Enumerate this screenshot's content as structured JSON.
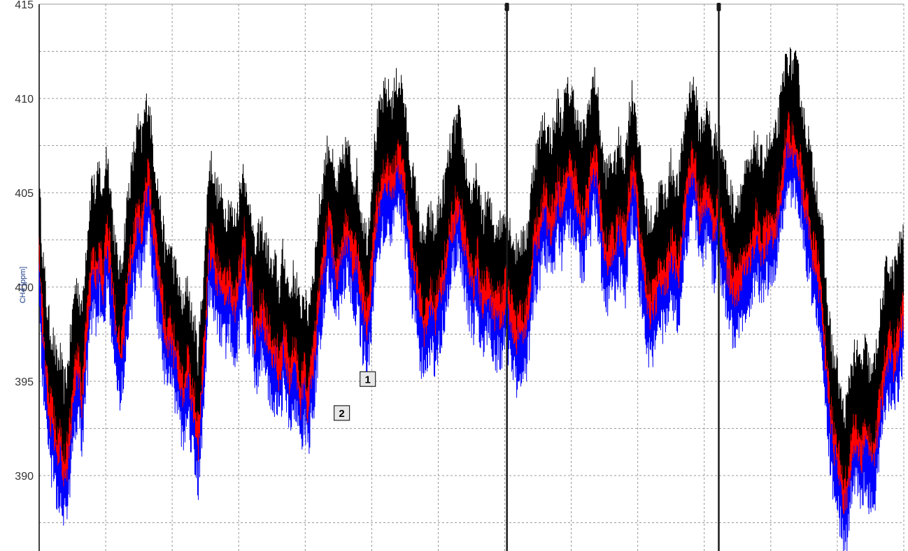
{
  "chart_data": {
    "type": "line",
    "title": "",
    "xlabel": "",
    "ylabel": "CH4 [ppm]",
    "ylim": [
      386,
      415
    ],
    "y_ticks": [
      415,
      410,
      405,
      400,
      395,
      390
    ],
    "grid": true,
    "legend": "none",
    "colors": {
      "max": "#000000",
      "mean": "#ff0000",
      "min": "#0000ff",
      "grid": "#999999",
      "cursor": "#1a1a1a",
      "axis": "#000000"
    },
    "series": [
      {
        "values": [
          403.2,
          399.8,
          397.2,
          395.8,
          395.1,
          393.8,
          394.2,
          392.6,
          393.5,
          395.4,
          397.8,
          398.1,
          396.4,
          399.2,
          401.5,
          403.7,
          402.8,
          404.2,
          402.6,
          405.1,
          403.8,
          401.2,
          399.5,
          398.7,
          400.3,
          402.6,
          403.8,
          405.2,
          406.4,
          405.6,
          407.3,
          407.9,
          405.8,
          404.1,
          402.7,
          401.1,
          399.5,
          400.2,
          399.1,
          398.6,
          397.5,
          396.6,
          398.4,
          396.5,
          395.9,
          394.2,
          397.1,
          399.8,
          404.2,
          404.5,
          403.1,
          402.8,
          402.4,
          401.7,
          402.5,
          401.3,
          401.8,
          403.1,
          404.6,
          401.9,
          402.6,
          399.7,
          400.5,
          401.1,
          400.3,
          399.7,
          398.6,
          399.2,
          397.7,
          399.6,
          398.8,
          397.4,
          398.5,
          398.1,
          396.5,
          397.8,
          396.2,
          397.9,
          399.1,
          401.4,
          402.9,
          404.5,
          405.6,
          404.7,
          402.9,
          403.8,
          404.6,
          405.4,
          404.8,
          403.6,
          403.9,
          402.2,
          401.3,
          400.4,
          402.8,
          405.3,
          406.8,
          407.6,
          408.2,
          408.1,
          407.7,
          408.6,
          408.9,
          408.4,
          406.6,
          404.8,
          403.7,
          402.6,
          401.1,
          400.2,
          401.3,
          401.7,
          400.7,
          401.9,
          402.4,
          403.5,
          404.8,
          405.7,
          406.5,
          406.8,
          405.4,
          404.2,
          403.1,
          402.6,
          403.9,
          402.1,
          401.7,
          402.6,
          401.8,
          400.9,
          401.4,
          401.1,
          402.2,
          401.3,
          400.7,
          399.8,
          400.4,
          400.2,
          400.6,
          402.1,
          404.3,
          405.1,
          405.8,
          406.9,
          406.1,
          405.7,
          406.4,
          407.7,
          406.6,
          407.9,
          408.3,
          408.1,
          407.4,
          406.2,
          405.8,
          406.7,
          407.8,
          408.9,
          408.6,
          406.2,
          404.3,
          403.9,
          404.8,
          404.2,
          405.6,
          405.1,
          404.7,
          406.8,
          408.2,
          407.5,
          405.1,
          403.7,
          401.9,
          401.3,
          401.6,
          402.2,
          403.2,
          402.6,
          403.1,
          404.4,
          403.8,
          403.1,
          404.9,
          406.8,
          407.9,
          408.8,
          408.1,
          406.2,
          406.6,
          407.2,
          406.7,
          405.3,
          406.2,
          405.5,
          404.8,
          403.4,
          402.8,
          402.2,
          402.6,
          403.1,
          403.8,
          404.1,
          404.5,
          405.8,
          404.7,
          404.5,
          405.2,
          405.4,
          405.4,
          406.2,
          407.5,
          409.1,
          410.3,
          409.7,
          409.8,
          409.2,
          407.9,
          406.4,
          405.8,
          404.2,
          403.6,
          402.3,
          400.9,
          397.8,
          395.9,
          394.2,
          393.6,
          392.3,
          391.1,
          391.8,
          393.6,
          394.5,
          394.1,
          393.7,
          394.8,
          393.8,
          393.2,
          394.1,
          395.9,
          397.2,
          398.8,
          399.1,
          398.5,
          399.4,
          400.2,
          401.4
        ],
        "note": "max envelope, evenly spaced over the x span"
      },
      {
        "values": [
          401.8,
          398.6,
          396.1,
          394.2,
          393.6,
          392.4,
          392.7,
          391.2,
          392.1,
          393.9,
          396.4,
          396.7,
          395.1,
          397.9,
          400.2,
          402.4,
          401.6,
          402.8,
          401.3,
          403.7,
          402.5,
          400.1,
          398.2,
          397.4,
          399.1,
          401.3,
          402.5,
          403.9,
          405.1,
          404.3,
          405.9,
          406.6,
          404.5,
          402.8,
          401.4,
          399.8,
          398.2,
          398.9,
          397.8,
          397.3,
          396.2,
          395.3,
          397.1,
          395.2,
          394.5,
          392.9,
          395.8,
          398.5,
          402.9,
          403.2,
          401.8,
          401.5,
          401.1,
          400.4,
          401.2,
          400.0,
          400.5,
          401.8,
          403.3,
          400.6,
          401.3,
          398.4,
          399.2,
          399.8,
          399.0,
          398.4,
          397.3,
          397.9,
          396.4,
          398.3,
          397.5,
          396.1,
          397.2,
          396.8,
          395.2,
          396.5,
          394.9,
          396.6,
          397.8,
          400.1,
          401.6,
          403.2,
          404.3,
          403.4,
          401.6,
          402.5,
          403.3,
          404.1,
          403.5,
          402.3,
          402.6,
          400.9,
          400.0,
          399.1,
          401.5,
          404.0,
          405.5,
          406.3,
          406.9,
          406.8,
          406.4,
          407.3,
          407.6,
          407.1,
          405.3,
          403.5,
          402.4,
          401.3,
          399.8,
          398.9,
          400.0,
          400.4,
          399.4,
          400.6,
          401.1,
          402.2,
          403.5,
          404.4,
          405.2,
          405.5,
          404.1,
          402.9,
          401.8,
          401.3,
          402.6,
          400.8,
          400.4,
          401.3,
          400.5,
          399.6,
          400.1,
          399.8,
          400.9,
          400.0,
          399.4,
          398.5,
          399.1,
          398.9,
          399.3,
          400.8,
          403.0,
          403.8,
          404.5,
          405.6,
          404.8,
          404.4,
          405.1,
          406.4,
          405.3,
          406.6,
          407.0,
          406.8,
          406.1,
          404.9,
          404.5,
          405.4,
          406.5,
          407.6,
          407.3,
          404.9,
          403.0,
          402.6,
          403.5,
          402.9,
          404.3,
          403.8,
          403.4,
          405.5,
          406.9,
          406.2,
          403.8,
          402.4,
          400.6,
          400.0,
          400.3,
          400.9,
          401.9,
          401.3,
          401.8,
          403.1,
          402.5,
          401.8,
          403.6,
          405.5,
          406.6,
          407.5,
          406.8,
          404.9,
          405.3,
          405.9,
          405.4,
          404.0,
          404.9,
          404.2,
          403.5,
          402.1,
          401.5,
          400.9,
          401.3,
          401.8,
          402.5,
          402.8,
          403.2,
          404.5,
          403.4,
          403.2,
          403.9,
          404.1,
          404.1,
          404.9,
          406.2,
          407.8,
          409.0,
          408.4,
          408.5,
          407.9,
          406.6,
          405.1,
          404.5,
          402.9,
          402.3,
          401.0,
          399.6,
          396.5,
          394.6,
          392.9,
          392.3,
          391.0,
          389.8,
          390.5,
          392.3,
          393.2,
          392.8,
          392.4,
          393.5,
          392.5,
          391.9,
          392.8,
          394.6,
          395.9,
          397.5,
          397.8,
          397.2,
          398.1,
          398.9,
          400.1
        ],
        "note": "mean envelope"
      },
      {
        "values": [
          400.4,
          397.2,
          394.8,
          392.9,
          392.2,
          391.0,
          391.4,
          389.9,
          390.8,
          392.6,
          395.1,
          395.4,
          393.8,
          396.6,
          398.9,
          401.1,
          400.3,
          401.5,
          400.0,
          402.4,
          401.2,
          398.8,
          396.9,
          396.1,
          397.8,
          400.0,
          401.2,
          402.6,
          403.8,
          403.0,
          404.6,
          405.3,
          403.2,
          401.5,
          400.1,
          398.5,
          396.9,
          397.6,
          396.5,
          396.0,
          394.9,
          394.0,
          395.8,
          393.9,
          393.2,
          391.6,
          394.5,
          397.2,
          401.6,
          401.9,
          400.5,
          400.2,
          399.8,
          399.1,
          399.9,
          398.7,
          399.2,
          400.5,
          402.0,
          399.3,
          400.0,
          397.1,
          397.9,
          398.5,
          397.7,
          397.1,
          396.0,
          396.6,
          395.1,
          397.0,
          396.2,
          394.8,
          395.9,
          395.5,
          393.9,
          395.2,
          393.6,
          395.3,
          396.5,
          398.8,
          400.3,
          401.9,
          403.0,
          402.1,
          400.3,
          401.2,
          402.0,
          402.8,
          402.2,
          401.0,
          401.3,
          399.6,
          398.7,
          397.8,
          400.2,
          402.7,
          404.2,
          405.0,
          405.6,
          405.5,
          405.1,
          406.0,
          406.3,
          405.8,
          404.0,
          402.2,
          401.1,
          400.0,
          398.5,
          397.6,
          398.7,
          399.1,
          398.1,
          399.3,
          399.8,
          400.9,
          402.2,
          403.1,
          403.9,
          404.2,
          402.8,
          401.6,
          400.5,
          400.0,
          401.3,
          399.5,
          399.1,
          400.0,
          399.2,
          398.3,
          398.8,
          398.5,
          399.6,
          398.7,
          398.1,
          397.2,
          397.8,
          397.6,
          398.0,
          399.5,
          401.7,
          402.5,
          403.2,
          404.3,
          403.5,
          403.1,
          403.8,
          405.1,
          404.0,
          405.3,
          405.7,
          405.5,
          404.8,
          403.6,
          403.2,
          404.1,
          405.2,
          406.3,
          406.0,
          403.6,
          401.7,
          401.3,
          402.2,
          401.6,
          403.0,
          402.5,
          402.1,
          404.2,
          405.6,
          404.9,
          402.5,
          401.1,
          399.3,
          398.7,
          399.0,
          399.6,
          400.6,
          400.0,
          400.5,
          401.8,
          401.2,
          400.5,
          402.3,
          404.2,
          405.3,
          406.2,
          405.5,
          403.6,
          404.0,
          404.6,
          404.1,
          402.7,
          403.6,
          402.9,
          402.2,
          400.8,
          400.2,
          399.6,
          400.0,
          400.5,
          401.2,
          401.5,
          401.9,
          403.2,
          402.1,
          401.9,
          402.6,
          402.8,
          402.8,
          403.6,
          404.9,
          406.5,
          407.7,
          407.1,
          407.2,
          406.6,
          405.3,
          403.8,
          403.2,
          401.6,
          401.0,
          399.7,
          398.3,
          395.2,
          393.3,
          391.6,
          391.0,
          389.7,
          388.5,
          389.2,
          391.0,
          391.9,
          391.5,
          391.1,
          392.2,
          391.2,
          390.6,
          391.5,
          393.3,
          394.6,
          396.2,
          396.5,
          395.9,
          396.8,
          397.6,
          398.8
        ],
        "note": "min envelope"
      }
    ],
    "annotations": [
      {
        "label": "1",
        "x_frac_data": 0.38,
        "y": 395.1
      },
      {
        "label": "2",
        "x_frac_data": 0.35,
        "y": 393.3
      }
    ],
    "cursors": [
      {
        "name": "cursor-1",
        "x_frac_data": 0.541
      },
      {
        "name": "cursor-2",
        "x_frac_data": 0.786
      }
    ]
  },
  "labels": {
    "ylabel": "CH4 [ppm]",
    "marker1": "1",
    "marker2": "2"
  }
}
